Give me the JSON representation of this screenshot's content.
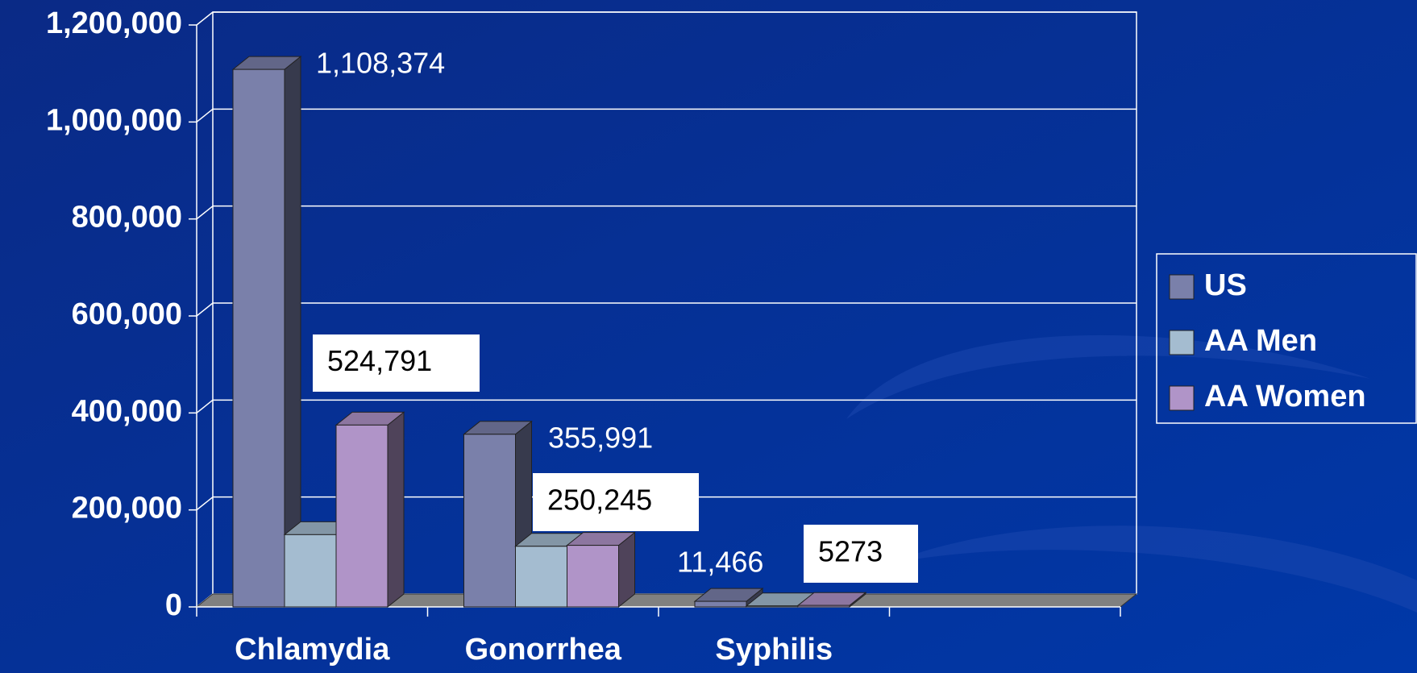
{
  "chart_data": {
    "type": "bar3d",
    "categories": [
      "Chlamydia",
      "Gonorrhea",
      "Syphilis",
      null
    ],
    "series": [
      {
        "name": "US",
        "color": "#7a80aa",
        "values": [
          1108374,
          355991,
          11466,
          null
        ],
        "value_labels": [
          "1,108,374",
          "355,991",
          "11,466",
          null
        ]
      },
      {
        "name": "AA Men",
        "color": "#a4bcd0",
        "values": [
          149000,
          125000,
          2000,
          null
        ]
      },
      {
        "name": "AA Women",
        "color": "#b094c8",
        "values": [
          375000,
          127000,
          3000,
          null
        ]
      }
    ],
    "annotations": [
      "524,791",
      "250,245",
      "5273"
    ],
    "ylim": [
      0,
      1200000
    ],
    "yticks": [
      0,
      {
        "value": 200000,
        "label": "200,000"
      },
      {
        "value": 400000,
        "label": "400,000"
      },
      {
        "value": 600000,
        "label": "600,000"
      },
      {
        "value": 800000,
        "label": "800,000"
      },
      {
        "value": 1000000,
        "label": "1,000,000"
      },
      {
        "value": 1200000,
        "label": "1,200,000"
      }
    ],
    "grid": true,
    "legend": "right"
  }
}
